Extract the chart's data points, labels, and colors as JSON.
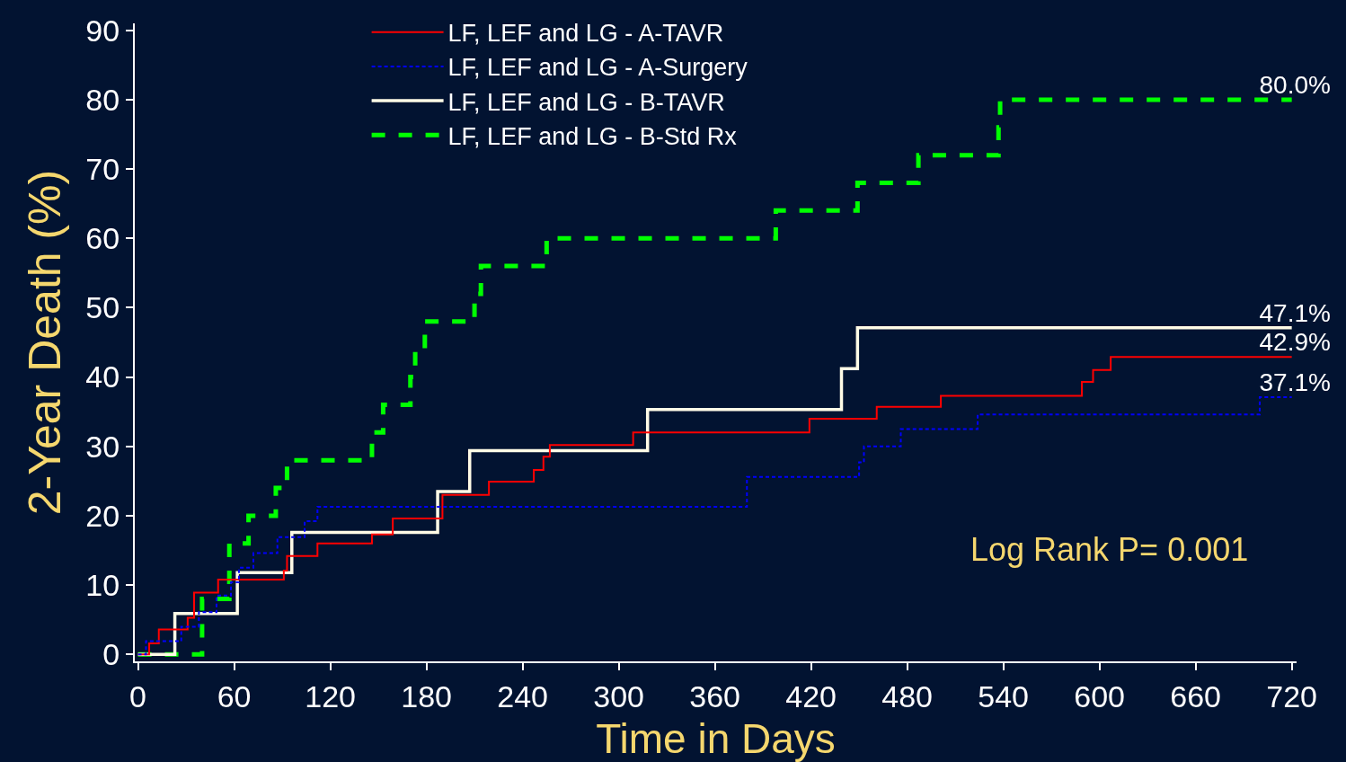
{
  "chart_data": {
    "type": "step",
    "xlabel": "Time in Days",
    "ylabel": "2-Year Death (%)",
    "xlim": [
      -2,
      723
    ],
    "xticks": [
      0,
      60,
      120,
      180,
      240,
      300,
      360,
      420,
      480,
      540,
      600,
      660,
      720
    ],
    "ylim": [
      -1,
      91
    ],
    "yticks": [
      0,
      10,
      20,
      30,
      40,
      50,
      60,
      70,
      80,
      90
    ],
    "grid": false,
    "legend": "top",
    "marker": "none",
    "series": [
      {
        "name": "LF, LEF and LG - A-TAVR",
        "color": "#ff0000",
        "line_style": "solid",
        "x": [
          0,
          7,
          13,
          31,
          35,
          50,
          91,
          93,
          112,
          146,
          159,
          190,
          219,
          247,
          253,
          257,
          309,
          419,
          461,
          501,
          589,
          596,
          607,
          720
        ],
        "values": [
          0,
          1.6,
          3.6,
          5.3,
          8.9,
          10.8,
          12.1,
          14.2,
          16,
          17.3,
          19.6,
          23,
          24.9,
          26.6,
          28.5,
          30.2,
          32,
          34,
          35.7,
          37.3,
          39.3,
          41,
          42.9,
          42.9
        ]
      },
      {
        "name": "LF, LEF and LG - A-Surgery",
        "color": "#0000ff",
        "line_style": "dashed",
        "x": [
          0,
          5,
          27,
          38,
          49,
          58,
          63,
          72,
          87,
          104,
          112,
          380,
          450,
          453,
          476,
          524,
          700,
          720
        ],
        "values": [
          0,
          1.9,
          4,
          6.1,
          8.5,
          10.4,
          12.5,
          14.6,
          16.9,
          19.2,
          21.3,
          25.6,
          27.7,
          30,
          32.5,
          34.6,
          37.1,
          37.1
        ]
      },
      {
        "name": "LF, LEF and LG - B-TAVR",
        "color": "#fffbe6",
        "line_style": "solid",
        "x": [
          0,
          23,
          62,
          96,
          187,
          207,
          318,
          439,
          449,
          720
        ],
        "values": [
          0,
          5.9,
          11.8,
          17.6,
          23.5,
          29.4,
          35.3,
          41.2,
          47.1,
          47.1
        ]
      },
      {
        "name": "LF, LEF and LG - B-Std Rx",
        "color": "#00ff00",
        "line_style": "dashed",
        "x": [
          0,
          40,
          57,
          69,
          86,
          93,
          146,
          153,
          170,
          173,
          179,
          210,
          214,
          255,
          398,
          449,
          487,
          537,
          538,
          720
        ],
        "values": [
          0,
          8,
          16,
          20,
          24,
          28,
          32,
          36,
          40,
          44,
          48,
          52,
          56,
          60,
          64,
          68,
          72,
          76,
          80,
          80
        ]
      }
    ],
    "annotations": [
      {
        "text": "80.0%",
        "y": 80
      },
      {
        "text": "47.1%",
        "y": 47.1
      },
      {
        "text": "42.9%",
        "y": 42.9
      },
      {
        "text": "37.1%",
        "y": 37.1
      },
      "Log Rank P= 0.001"
    ]
  }
}
